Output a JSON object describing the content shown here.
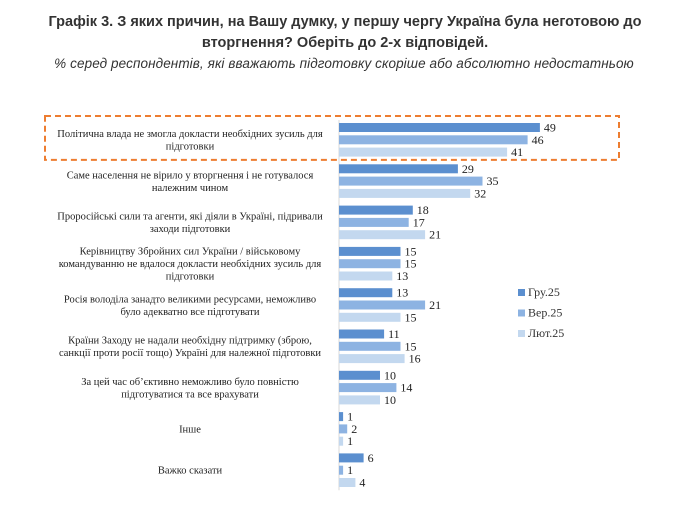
{
  "header": {
    "title": "Графік 3. З яких причин, на Вашу думку, у першу чергу Україна була неготовою до вторгнення? Оберіть до 2-х відповідей.",
    "subtitle": "% серед респондентів, які вважають підготовку скоріше або абсолютно недостатньою"
  },
  "chart_data": {
    "type": "bar",
    "orientation": "horizontal",
    "title": "Графік 3. З яких причин, на Вашу думку, у першу чергу Україна була неготовою до вторгнення? Оберіть до 2-х відповідей.",
    "subtitle": "% серед респондентів, які вважають підготовку скоріше або абсолютно недостатньою",
    "categories": [
      [
        "Політична влада не змогла докласти необхідних зусиль для",
        "підготовки"
      ],
      [
        "Саме населення не вірило у вторгнення і не готувалося",
        "належним чином"
      ],
      [
        "Проросійські сили та агенти, які діяли в Україні, підривали",
        "заходи підготовки"
      ],
      [
        "Керівництву Збройних сил України / військовому",
        "командуванню не вдалося докласти необхідних зусиль для",
        "підготовки"
      ],
      [
        "Росія володіла занадто великими ресурсами, неможливо",
        "було адекватно все підготувати"
      ],
      [
        "Країни Заходу не надали необхідну підтримку (зброю,",
        "санкції проти росії тощо) Україні для належної підготовки"
      ],
      [
        "За цей час об’єктивно неможливо було повністю",
        "підготуватися та все врахувати"
      ],
      [
        "Інше"
      ],
      [
        "Важко сказати"
      ]
    ],
    "series": [
      {
        "name": "Гру.25",
        "color": "#5b8fcf",
        "values": [
          49,
          29,
          18,
          15,
          13,
          11,
          10,
          1,
          6
        ]
      },
      {
        "name": "Вер.25",
        "color": "#8db3e2",
        "values": [
          46,
          35,
          17,
          15,
          21,
          15,
          14,
          2,
          1
        ]
      },
      {
        "name": "Лют.25",
        "color": "#c3d8ef",
        "values": [
          41,
          32,
          21,
          13,
          15,
          16,
          10,
          1,
          4
        ]
      }
    ],
    "xlim": [
      0,
      60
    ],
    "grid": false,
    "legend": "right",
    "highlight": {
      "category_index": 0,
      "color": "#ed7d31",
      "style": "dashed"
    }
  }
}
